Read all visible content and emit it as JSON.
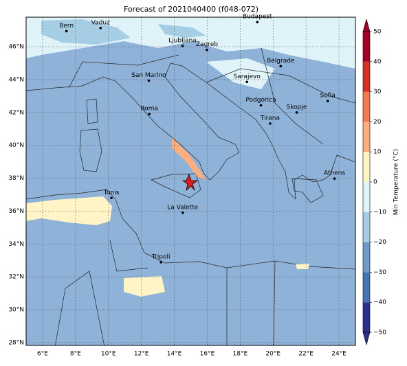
{
  "title": "Forecast of 2021040400 (f048-072)",
  "map": {
    "lonlim": [
      5,
      25
    ],
    "latlim": [
      27.83,
      47.8
    ],
    "lonticks": [
      {
        "value": 6,
        "label": "6°E"
      },
      {
        "value": 8,
        "label": "8°E"
      },
      {
        "value": 10,
        "label": "10°E"
      },
      {
        "value": 12,
        "label": "12°E"
      },
      {
        "value": 14,
        "label": "14°E"
      },
      {
        "value": 16,
        "label": "16°E"
      },
      {
        "value": 18,
        "label": "18°E"
      },
      {
        "value": 20,
        "label": "20°E"
      },
      {
        "value": 22,
        "label": "22°E"
      },
      {
        "value": 24,
        "label": "24°E"
      }
    ],
    "latticks": [
      {
        "value": 28,
        "label": "28°N"
      },
      {
        "value": 30,
        "label": "30°N"
      },
      {
        "value": 32,
        "label": "32°N"
      },
      {
        "value": 34,
        "label": "34°N"
      },
      {
        "value": 36,
        "label": "36°N"
      },
      {
        "value": 38,
        "label": "38°N"
      },
      {
        "value": 40,
        "label": "40°N"
      },
      {
        "value": 42,
        "label": "42°N"
      },
      {
        "value": 44,
        "label": "44°N"
      },
      {
        "value": 46,
        "label": "46°N"
      }
    ],
    "cities": [
      {
        "name": "Bern",
        "lon": 7.45,
        "lat": 46.95
      },
      {
        "name": "Vaduz",
        "lon": 9.52,
        "lat": 47.14
      },
      {
        "name": "Budapest",
        "lon": 19.04,
        "lat": 47.5
      },
      {
        "name": "Ljubljana",
        "lon": 14.5,
        "lat": 46.05
      },
      {
        "name": "Zagreb",
        "lon": 15.98,
        "lat": 45.81
      },
      {
        "name": "Belgrade",
        "lon": 20.46,
        "lat": 44.82
      },
      {
        "name": "San Marino",
        "lon": 12.45,
        "lat": 43.94
      },
      {
        "name": "Sarajevo",
        "lon": 18.41,
        "lat": 43.86
      },
      {
        "name": "Sofia",
        "lon": 23.32,
        "lat": 42.7
      },
      {
        "name": "Roma",
        "lon": 12.48,
        "lat": 41.9
      },
      {
        "name": "Podgorica",
        "lon": 19.26,
        "lat": 42.44
      },
      {
        "name": "Skopje",
        "lon": 21.43,
        "lat": 42.0
      },
      {
        "name": "Tirana",
        "lon": 19.82,
        "lat": 41.33
      },
      {
        "name": "Athens",
        "lon": 23.73,
        "lat": 37.98
      },
      {
        "name": "Tunis",
        "lon": 10.18,
        "lat": 36.8
      },
      {
        "name": "La Valette",
        "lon": 14.51,
        "lat": 35.9
      },
      {
        "name": "Tripoli",
        "lon": 13.19,
        "lat": 32.89
      }
    ]
  },
  "colorbar": {
    "label": "Min Temperature (°C)",
    "ticks": [
      {
        "value": -50,
        "label": "−50"
      },
      {
        "value": -40,
        "label": "−40"
      },
      {
        "value": -30,
        "label": "−30"
      },
      {
        "value": -20,
        "label": "−20"
      },
      {
        "value": -10,
        "label": "−10"
      },
      0,
      10,
      20,
      30,
      40,
      50
    ],
    "colors": [
      "#2c2f8f",
      "#4575b4",
      "#6e9ac9",
      "#a5cde3",
      "#e0f3f8",
      "#fff4c6",
      "#fdae7a",
      "#f47a4e",
      "#d73027",
      "#a50026"
    ]
  }
}
